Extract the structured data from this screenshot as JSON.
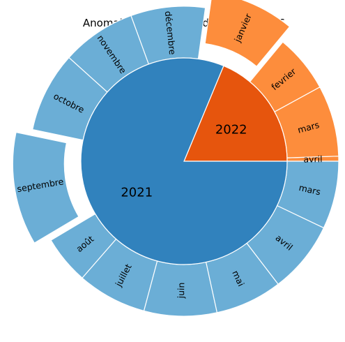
{
  "chart_data": {
    "type": "sunburst",
    "title": "Anomalies dans l'arrondissement n°16",
    "colors": {
      "2021_inner": "#3182bd",
      "2021_outer": "#6baed6",
      "2022_inner": "#e6550d",
      "2022_outer": "#fd8d3c"
    },
    "inner": [
      {
        "label": "2021",
        "value": 1133
      },
      {
        "label": "2022",
        "value": 261
      }
    ],
    "outer": [
      {
        "year": "2022",
        "label": "avril",
        "value": 6,
        "exploded": false
      },
      {
        "year": "2022",
        "label": "mars",
        "value": 85,
        "exploded": false
      },
      {
        "year": "2022",
        "label": "fevrier",
        "value": 69,
        "exploded": false
      },
      {
        "year": "2022",
        "label": "janvier",
        "value": 101,
        "exploded": true
      },
      {
        "year": "2021",
        "label": "décembre",
        "value": 89,
        "exploded": false
      },
      {
        "year": "2021",
        "label": "novembre",
        "value": 89,
        "exploded": false
      },
      {
        "year": "2021",
        "label": "octobre",
        "value": 96,
        "exploded": false
      },
      {
        "year": "2021",
        "label": "septembre",
        "value": 135,
        "exploded": true
      },
      {
        "year": "2021",
        "label": "août",
        "value": 58,
        "exploded": false
      },
      {
        "year": "2021",
        "label": "juillet",
        "value": 83,
        "exploded": false
      },
      {
        "year": "2021",
        "label": "juin",
        "value": 87,
        "exploded": false
      },
      {
        "year": "2021",
        "label": "mai",
        "value": 80,
        "exploded": false
      },
      {
        "year": "2021",
        "label": "avril",
        "value": 86,
        "exploded": false
      },
      {
        "year": "2021",
        "label": "mars",
        "value": 81,
        "exploded": false
      }
    ]
  }
}
